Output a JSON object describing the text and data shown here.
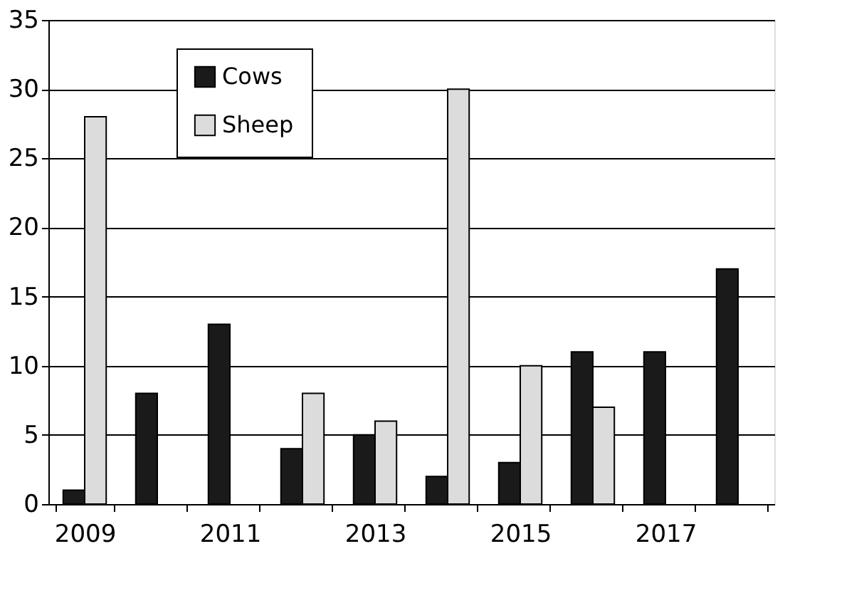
{
  "chart_data": {
    "type": "bar",
    "categories": [
      "2009",
      null,
      "2011",
      null,
      "2013",
      null,
      "2015",
      null,
      "2017",
      null
    ],
    "series": [
      {
        "name": "Cows",
        "color": "#1a1a1a",
        "values": [
          1,
          8,
          13,
          4,
          5,
          2,
          3,
          11,
          11,
          17
        ]
      },
      {
        "name": "Sheep",
        "color": "#dcdcdc",
        "values": [
          28,
          null,
          null,
          8,
          6,
          30,
          10,
          7,
          null,
          null
        ]
      }
    ],
    "ylim": [
      0,
      35
    ],
    "yticks": [
      0,
      5,
      10,
      15,
      20,
      25,
      30,
      35
    ],
    "grid": "y",
    "legend": "top left"
  }
}
